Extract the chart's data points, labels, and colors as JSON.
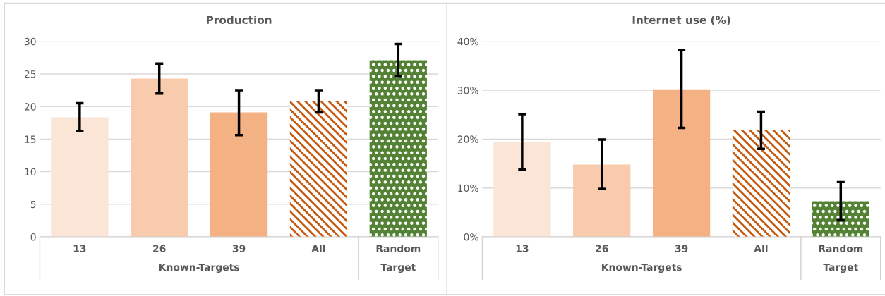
{
  "chart_data": [
    {
      "type": "bar",
      "title": "Production",
      "categories": [
        "13",
        "26",
        "39",
        "All",
        "Random"
      ],
      "values": [
        18.35,
        24.3,
        19.1,
        20.8,
        27.1
      ],
      "errors": [
        [
          16.25,
          20.5
        ],
        [
          22.0,
          26.6
        ],
        [
          15.6,
          22.5
        ],
        [
          19.1,
          22.5
        ],
        [
          24.7,
          29.6
        ]
      ],
      "colors": [
        "#fbe5d6",
        "#f8cbad",
        "#f4b183",
        "#c55a11",
        "#548235"
      ],
      "ylim": [
        0,
        30
      ],
      "yticks": [
        0,
        5,
        10,
        15,
        20,
        25,
        30
      ],
      "grid": "y",
      "legend": false,
      "annotations": [
        "Known-Targets",
        "Target"
      ]
    },
    {
      "type": "bar",
      "title": "Internet use (%)",
      "categories": [
        "13",
        "26",
        "39",
        "All",
        "Random"
      ],
      "values": [
        19.4,
        14.8,
        30.2,
        21.8,
        7.3
      ],
      "errors": [
        [
          13.8,
          25.1
        ],
        [
          9.8,
          19.9
        ],
        [
          22.3,
          38.2
        ],
        [
          18.0,
          25.6
        ],
        [
          3.4,
          11.2
        ]
      ],
      "colors": [
        "#fbe5d6",
        "#f8cbad",
        "#f4b183",
        "#c55a11",
        "#548235"
      ],
      "ylim": [
        0,
        40
      ],
      "yticks": [
        {
          "value": 0,
          "label": "0%"
        },
        {
          "value": 10,
          "label": "10%"
        },
        {
          "value": 20,
          "label": "20%"
        },
        {
          "value": 30,
          "label": "30%"
        },
        {
          "value": 40,
          "label": "40%"
        }
      ],
      "grid": "y",
      "legend": false,
      "annotations": [
        "Known-Targets",
        "Target"
      ]
    }
  ]
}
